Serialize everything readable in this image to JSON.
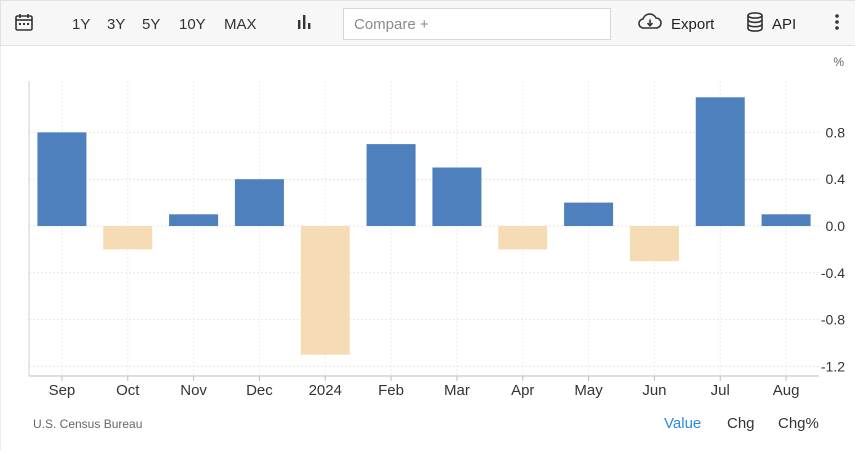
{
  "toolbar": {
    "ranges": [
      "1Y",
      "3Y",
      "5Y",
      "10Y",
      "MAX"
    ],
    "compare_placeholder": "Compare +",
    "export_label": "Export",
    "api_label": "API"
  },
  "chart_data": {
    "type": "bar",
    "categories": [
      "Sep",
      "Oct",
      "Nov",
      "Dec",
      "2024",
      "Feb",
      "Mar",
      "Apr",
      "May",
      "Jun",
      "Jul",
      "Aug"
    ],
    "values": [
      0.8,
      -0.2,
      0.1,
      0.4,
      -1.1,
      0.7,
      0.5,
      -0.2,
      0.2,
      -0.3,
      1.1,
      0.1
    ],
    "yticks": [
      0.8,
      0.4,
      0.0,
      -0.4,
      -0.8,
      -1.2
    ],
    "ytick_labels": [
      "0.8",
      "0.4",
      "0.0",
      "-0.4",
      "-0.8",
      "-1.2"
    ],
    "ylim": [
      -1.25,
      1.25
    ],
    "unit_label": "%",
    "positive_color": "#4d80bd",
    "negative_color": "#f5dcb4",
    "grid": true
  },
  "footer": {
    "source": "U.S. Census Bureau",
    "modes": [
      "Value",
      "Chg",
      "Chg%"
    ],
    "active_mode": "Value",
    "active_color": "#2b8ae0"
  }
}
